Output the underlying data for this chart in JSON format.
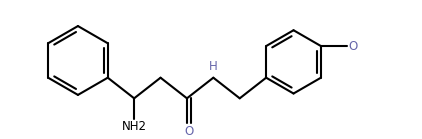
{
  "bg_color": "#ffffff",
  "line_color": "#000000",
  "text_color": "#000000",
  "nh_color": "#6666aa",
  "o_color": "#6666aa",
  "line_width": 1.5,
  "fig_width": 4.22,
  "fig_height": 1.39,
  "dpi": 100,
  "font_size": 8.5,
  "nh2_label": "NH2",
  "nh_label": "H",
  "o_label": "O",
  "ome_label": "O"
}
